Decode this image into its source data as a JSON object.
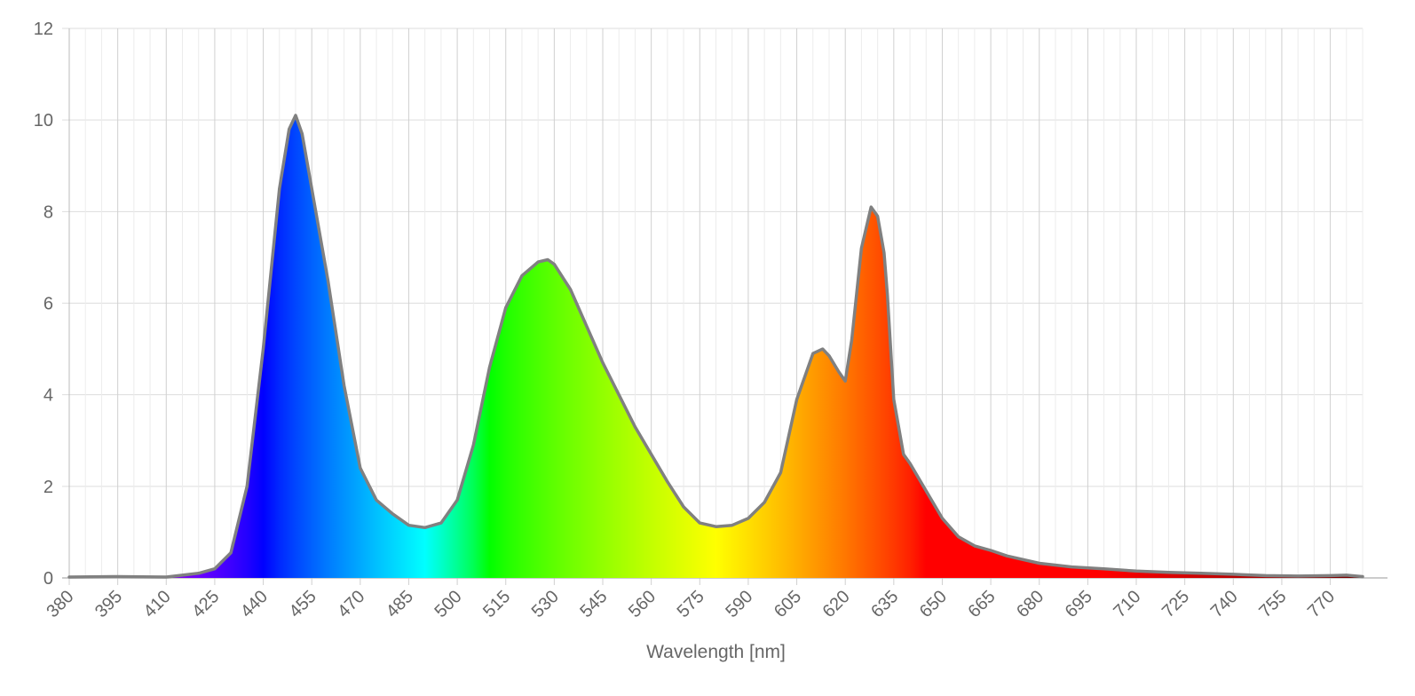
{
  "chart_data": {
    "type": "area",
    "title": "",
    "xlabel": "Wavelength [nm]",
    "ylabel": "",
    "xlim": [
      380,
      780
    ],
    "ylim": [
      0,
      12
    ],
    "y_ticks": [
      0,
      2,
      4,
      6,
      8,
      10,
      12
    ],
    "x_ticks": [
      380,
      395,
      410,
      425,
      440,
      455,
      470,
      485,
      500,
      515,
      530,
      545,
      560,
      575,
      590,
      605,
      620,
      635,
      650,
      665,
      680,
      695,
      710,
      725,
      740,
      755,
      770
    ],
    "grid": true,
    "fill": "visible-spectrum gradient",
    "outline_color": "#808080",
    "series": [
      {
        "x": [
          380,
          395,
          410,
          420,
          425,
          430,
          435,
          440,
          445,
          448,
          450,
          452,
          455,
          460,
          465,
          470,
          475,
          480,
          485,
          490,
          495,
          500,
          505,
          510,
          515,
          520,
          525,
          528,
          530,
          535,
          540,
          545,
          550,
          555,
          560,
          565,
          570,
          575,
          580,
          585,
          590,
          595,
          600,
          605,
          610,
          613,
          615,
          618,
          620,
          622,
          625,
          628,
          630,
          632,
          633,
          635,
          638,
          640,
          645,
          650,
          655,
          660,
          665,
          670,
          680,
          690,
          700,
          710,
          720,
          730,
          740,
          750,
          760,
          770,
          775,
          778,
          780
        ],
        "values": [
          0.02,
          0.03,
          0.02,
          0.1,
          0.2,
          0.55,
          2.0,
          5.0,
          8.5,
          9.8,
          10.1,
          9.7,
          8.5,
          6.5,
          4.2,
          2.4,
          1.7,
          1.4,
          1.15,
          1.1,
          1.2,
          1.7,
          2.9,
          4.6,
          5.9,
          6.6,
          6.9,
          6.95,
          6.85,
          6.3,
          5.5,
          4.7,
          4.0,
          3.3,
          2.7,
          2.1,
          1.55,
          1.2,
          1.12,
          1.15,
          1.3,
          1.65,
          2.3,
          3.9,
          4.9,
          5.0,
          4.85,
          4.5,
          4.3,
          5.2,
          7.2,
          8.1,
          7.9,
          7.1,
          6.2,
          3.9,
          2.7,
          2.5,
          1.9,
          1.3,
          0.9,
          0.7,
          0.6,
          0.48,
          0.32,
          0.24,
          0.2,
          0.15,
          0.12,
          0.1,
          0.08,
          0.05,
          0.04,
          0.05,
          0.06,
          0.04,
          0.03
        ]
      }
    ]
  }
}
